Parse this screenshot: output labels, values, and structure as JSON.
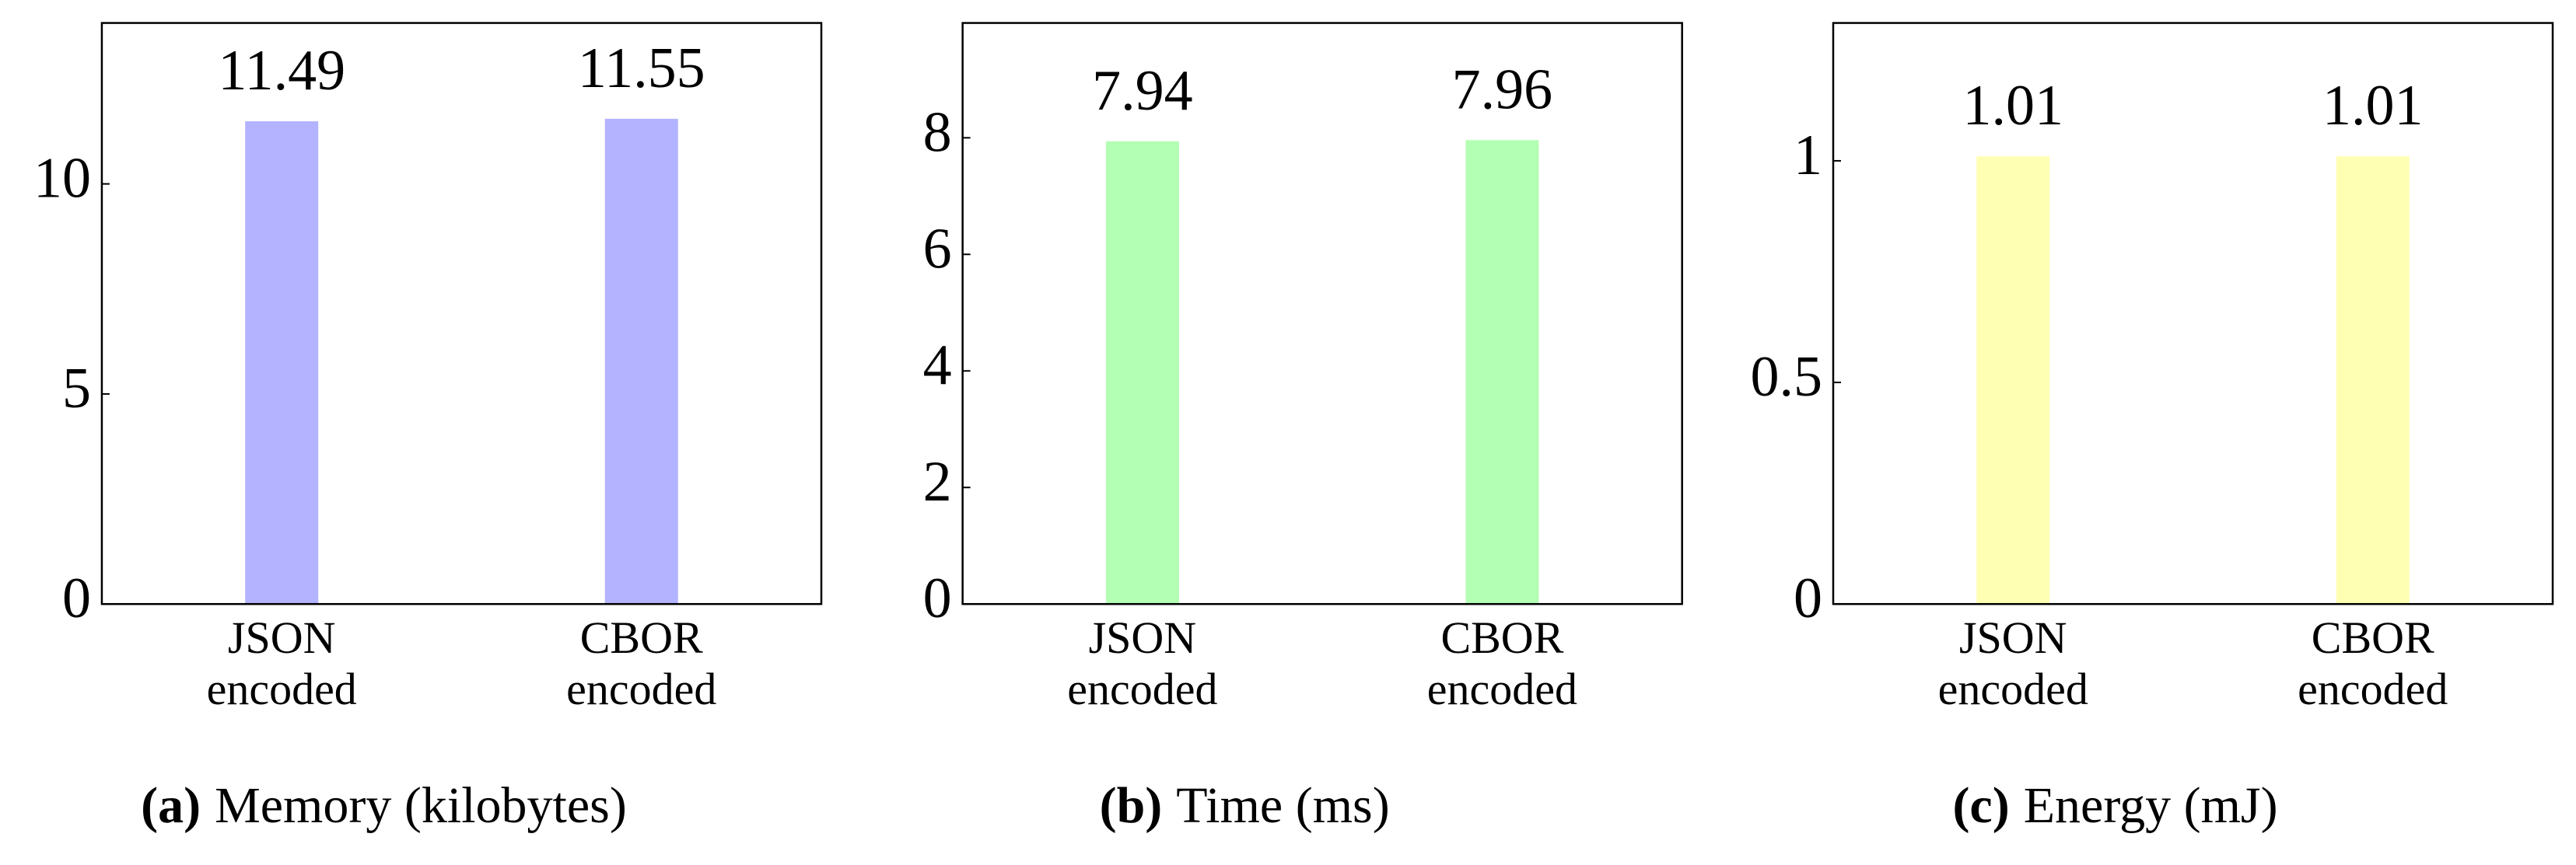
{
  "chart_data": [
    {
      "type": "bar",
      "label": "(a)",
      "title": "Memory (kilobytes)",
      "categories": [
        "JSON encoded",
        "CBOR encoded"
      ],
      "values": [
        11.49,
        11.55
      ],
      "color": "#b3b3ff",
      "ylim": [
        0,
        13.83
      ],
      "yticks": [
        0,
        5,
        10
      ]
    },
    {
      "type": "bar",
      "label": "(b)",
      "title": "Time (ms)",
      "categories": [
        "JSON encoded",
        "CBOR encoded"
      ],
      "values": [
        7.94,
        7.96
      ],
      "color": "#b3ffb3",
      "ylim": [
        0,
        9.97
      ],
      "yticks": [
        0,
        2,
        4,
        6,
        8
      ]
    },
    {
      "type": "bar",
      "label": "(c)",
      "title": "Energy (mJ)",
      "categories": [
        "JSON encoded",
        "CBOR encoded"
      ],
      "values": [
        1.01,
        1.01
      ],
      "color": "#ffffb3",
      "ylim": [
        0,
        1.311
      ],
      "yticks": [
        0,
        0.5,
        1
      ]
    }
  ]
}
